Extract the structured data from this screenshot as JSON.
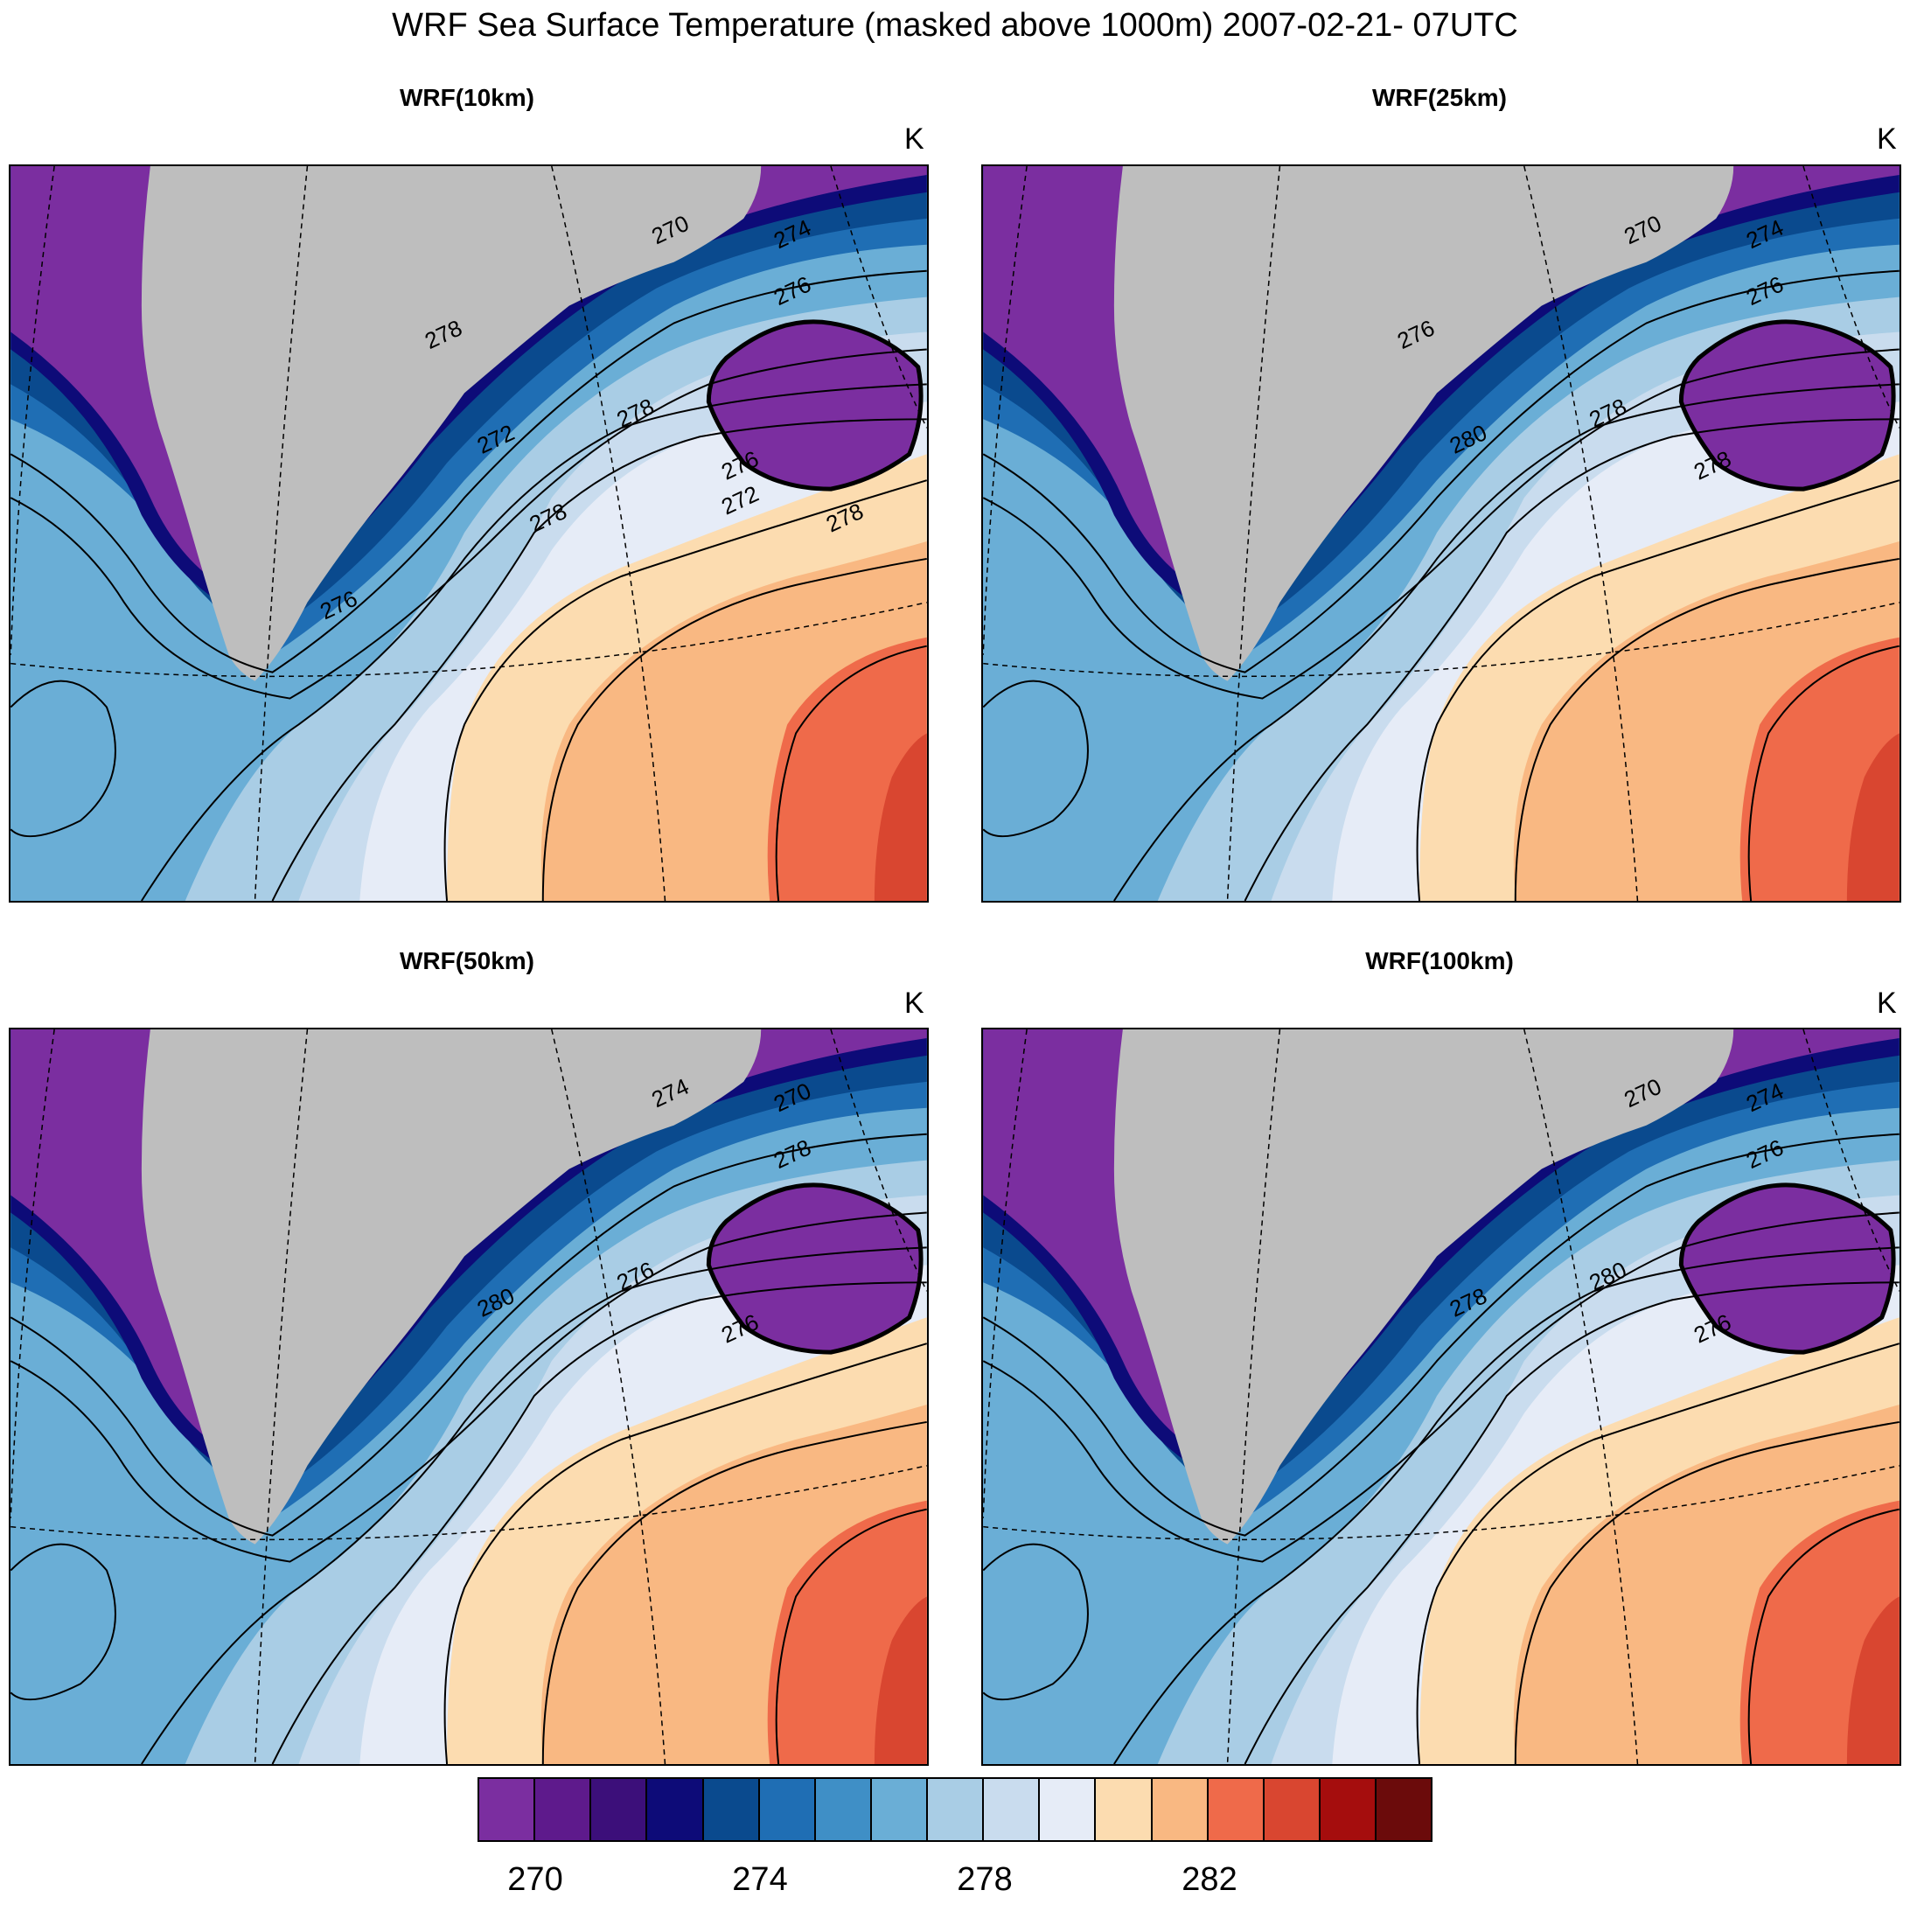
{
  "title": "WRF Sea Surface Temperature (masked above 1000m) 2007-02-21- 07UTC",
  "panels": [
    {
      "title": "WRF(10km)",
      "unit": "K",
      "contour_labels": [
        "274",
        "270",
        "276",
        "278",
        "272",
        "276",
        "278",
        "276",
        "278",
        "272",
        "278"
      ]
    },
    {
      "title": "WRF(25km)",
      "unit": "K",
      "contour_labels": [
        "274",
        "270",
        "276",
        "278",
        "280",
        "278",
        "276"
      ]
    },
    {
      "title": "WRF(50km)",
      "unit": "K",
      "contour_labels": [
        "270",
        "274",
        "278",
        "276",
        "280",
        "276"
      ]
    },
    {
      "title": "WRF(100km)",
      "unit": "K",
      "contour_labels": [
        "274",
        "270",
        "276",
        "280",
        "278",
        "276"
      ]
    }
  ],
  "colorbar": {
    "colors": [
      "#7b2ea0",
      "#5e1a8c",
      "#3c0f7a",
      "#0d0b78",
      "#0a4a8e",
      "#1f6eb4",
      "#3f8fc6",
      "#6aaed6",
      "#a9cde5",
      "#c9dcee",
      "#e6ecf7",
      "#fcdcb0",
      "#f9b882",
      "#ef6a4a",
      "#d94630",
      "#a50d0d",
      "#6b0b0b"
    ],
    "labels": [
      "270",
      "274",
      "278",
      "282"
    ]
  },
  "land_color": "#bebebe"
}
